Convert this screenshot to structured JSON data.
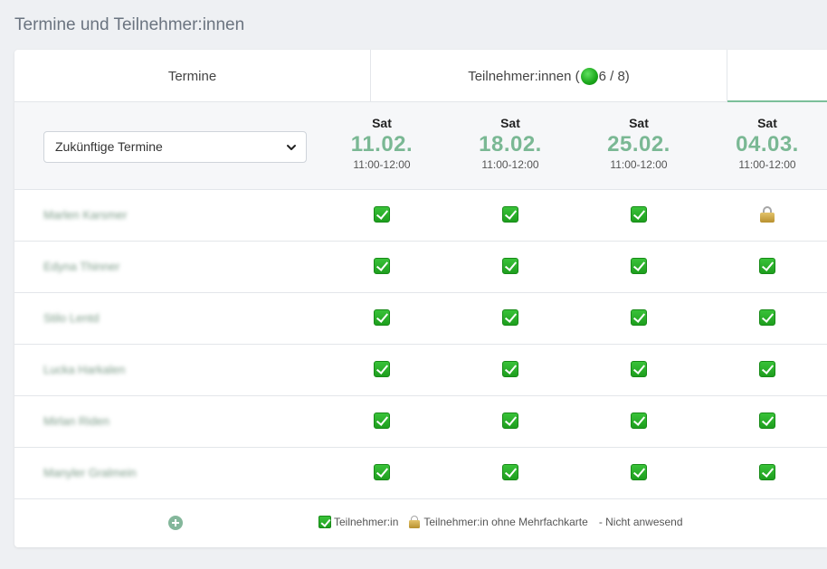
{
  "page_title": "Termine und Teilnehmer:innen",
  "tabs": {
    "termine": "Termine",
    "teilnehmer_prefix": "Teilnehmer:innen (",
    "teilnehmer_count": "6 / 8)",
    "third": ""
  },
  "filter": {
    "selected": "Zukünftige Termine"
  },
  "dates": [
    {
      "dow": "Sat",
      "date": "11.02.",
      "time": "11:00-12:00"
    },
    {
      "dow": "Sat",
      "date": "18.02.",
      "time": "11:00-12:00"
    },
    {
      "dow": "Sat",
      "date": "25.02.",
      "time": "11:00-12:00"
    },
    {
      "dow": "Sat",
      "date": "04.03.",
      "time": "11:00-12:00"
    }
  ],
  "participants": [
    {
      "name": "Marlen Karsmer",
      "status": [
        "check",
        "check",
        "check",
        "lock"
      ]
    },
    {
      "name": "Edyna Thinner",
      "status": [
        "check",
        "check",
        "check",
        "check"
      ]
    },
    {
      "name": "Stilo Lentd",
      "status": [
        "check",
        "check",
        "check",
        "check"
      ]
    },
    {
      "name": "Lucka Harkalen",
      "status": [
        "check",
        "check",
        "check",
        "check"
      ]
    },
    {
      "name": "Mirlan Riden",
      "status": [
        "check",
        "check",
        "check",
        "check"
      ]
    },
    {
      "name": "Manyler Gralmein",
      "status": [
        "check",
        "check",
        "check",
        "check"
      ]
    }
  ],
  "legend": {
    "participant": "Teilnehmer:in",
    "participant_no_card": "Teilnehmer:in ohne Mehrfachkarte",
    "absent": "- Nicht anwesend"
  },
  "colors": {
    "accent": "#7ab894",
    "check": "#1e9e1e",
    "tab_underline": "#7bbf9a"
  },
  "icons": {
    "check": "check-box-icon",
    "lock": "lock-icon",
    "add": "add-circle-icon",
    "status_dot": "green-dot-icon"
  }
}
